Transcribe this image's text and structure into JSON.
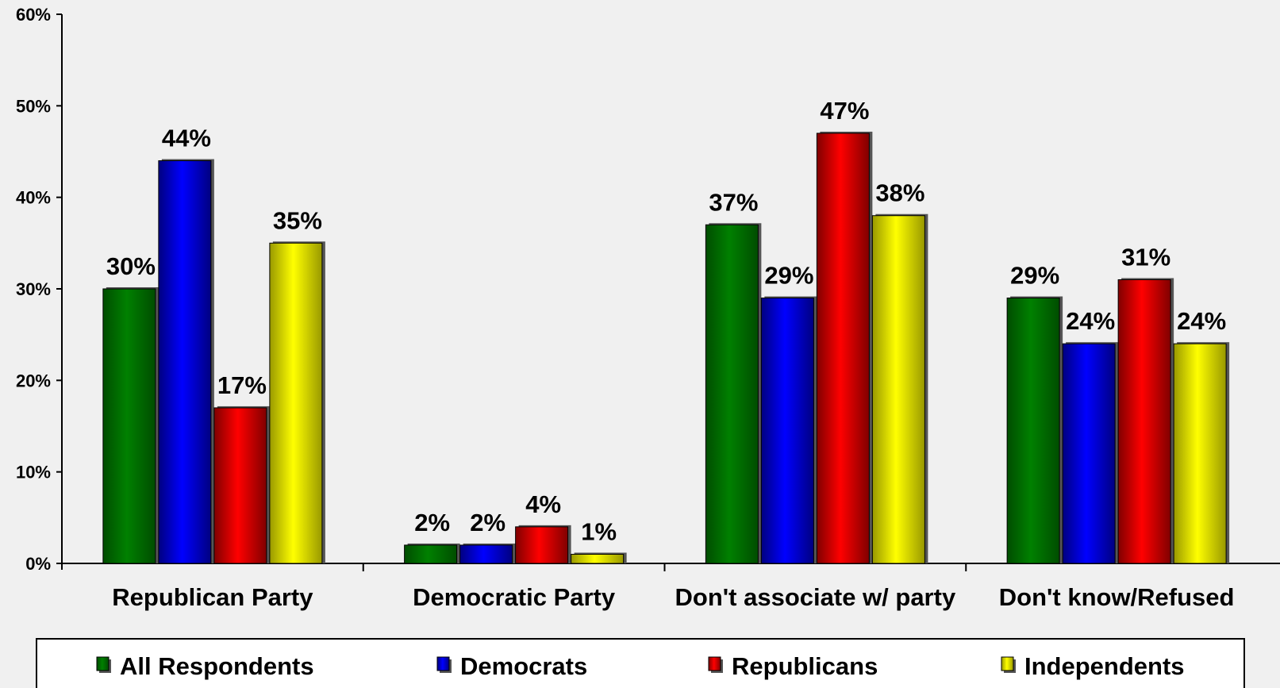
{
  "chart_data": {
    "type": "bar",
    "categories": [
      "Republican Party",
      "Democratic Party",
      "Don't associate w/ party",
      "Don't know/Refused"
    ],
    "series": [
      {
        "name": "All Respondents",
        "values": [
          30,
          2,
          37,
          29
        ],
        "labels": [
          "30%",
          "2%",
          "37%",
          "29%"
        ],
        "color": "#008000",
        "dark": "#004d00"
      },
      {
        "name": "Democrats",
        "values": [
          44,
          2,
          29,
          24
        ],
        "labels": [
          "44%",
          "2%",
          "29%",
          "24%"
        ],
        "color": "#0000ff",
        "dark": "#000080"
      },
      {
        "name": "Republicans",
        "values": [
          17,
          4,
          47,
          31
        ],
        "labels": [
          "17%",
          "4%",
          "47%",
          "31%"
        ],
        "color": "#ff0000",
        "dark": "#800000"
      },
      {
        "name": "Independents",
        "values": [
          35,
          1,
          38,
          24
        ],
        "labels": [
          "35%",
          "1%",
          "38%",
          "24%"
        ],
        "color": "#ffff00",
        "dark": "#999900"
      }
    ],
    "yticks": [
      "0%",
      "10%",
      "20%",
      "30%",
      "40%",
      "50%",
      "60%"
    ],
    "ylim": [
      0,
      60
    ],
    "grid": false,
    "legend": "bottom",
    "title": "",
    "xlabel": "",
    "ylabel": ""
  }
}
